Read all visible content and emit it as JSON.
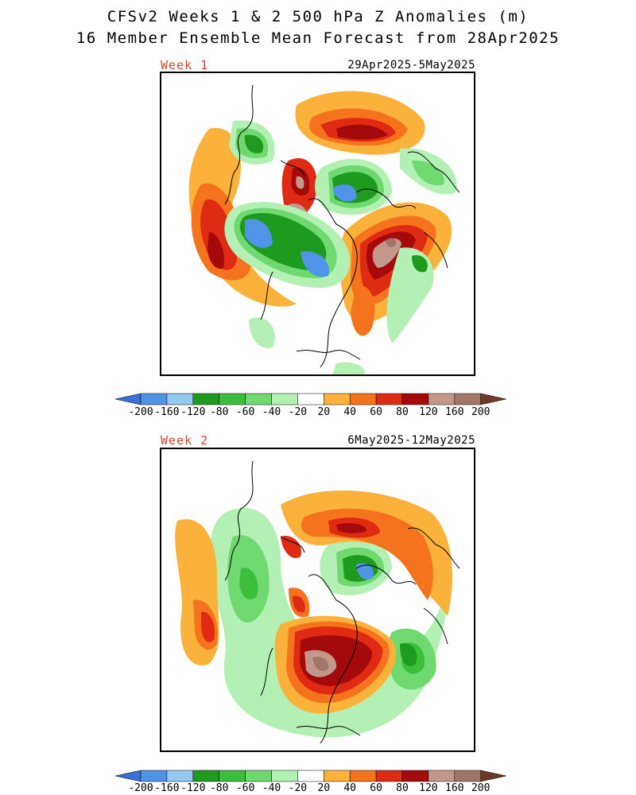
{
  "header": {
    "title_line1": "CFSv2 Weeks 1 & 2 500 hPa Z Anomalies (m)",
    "title_line2": "16 Member Ensemble Mean Forecast from 28Apr2025"
  },
  "panels": [
    {
      "label": "Week 1",
      "date_range": "29Apr2025-5May2025"
    },
    {
      "label": "Week 2",
      "date_range": "6May2025-12May2025"
    }
  ],
  "colorbar": {
    "levels": [
      "-200",
      "-160",
      "-120",
      "-80",
      "-60",
      "-40",
      "-20",
      "20",
      "40",
      "60",
      "80",
      "120",
      "160",
      "200"
    ],
    "colors": [
      "#3a6fd8",
      "#4f94e6",
      "#93c9f2",
      "#1e9a1e",
      "#3cbe3c",
      "#6fd86f",
      "#b3f0b3",
      "#ffffff",
      "#fbb23b",
      "#f5731d",
      "#df2a14",
      "#a50a0a",
      "#c3988c",
      "#a0766b",
      "#6b3a2a"
    ],
    "units": "m"
  },
  "colors": {
    "label_accent": "#d8442c"
  }
}
